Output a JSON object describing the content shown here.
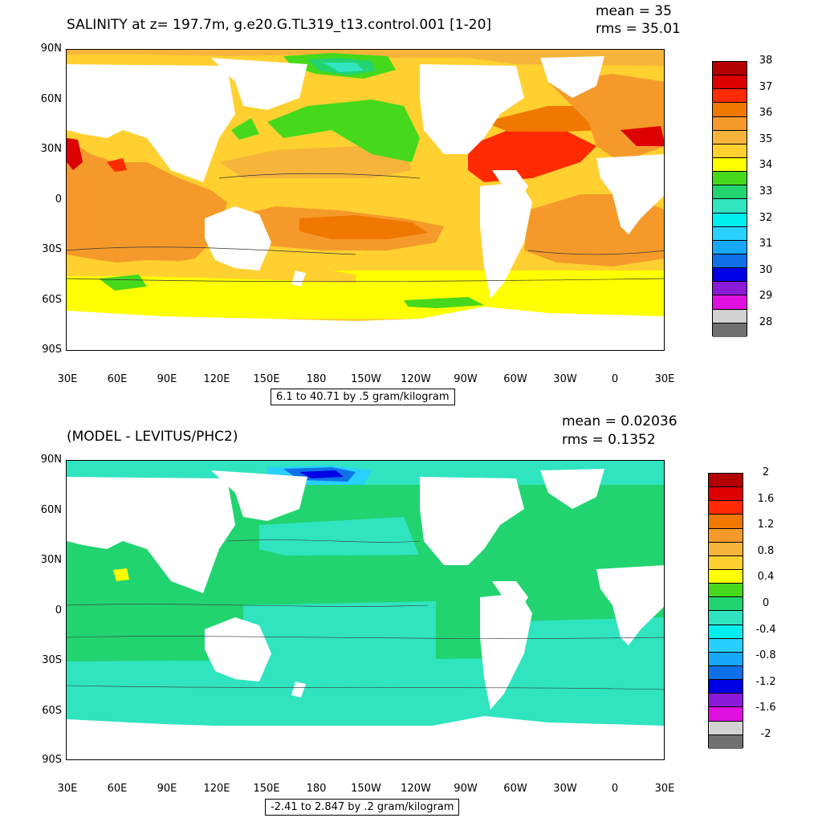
{
  "panels": [
    {
      "title": "SALINITY at z= 197.7m, g.e20.G.TL319_t13.control.001 [1-20]",
      "mean": "mean = 35",
      "rms": "rms = 35.01",
      "info": "6.1 to 40.71 by .5 gram/kilogram",
      "lat_labels": [
        "90N",
        "60N",
        "30N",
        "0",
        "30S",
        "60S",
        "90S"
      ],
      "lon_labels": [
        "30E",
        "60E",
        "90E",
        "120E",
        "150E",
        "180",
        "150W",
        "120W",
        "90W",
        "60W",
        "30W",
        "0",
        "30E"
      ],
      "colorbar_labels": [
        "38",
        "37",
        "36",
        "35",
        "34",
        "33",
        "32",
        "31",
        "30",
        "29",
        "28"
      ],
      "colorbar_colors": [
        "#b30000",
        "#dd0000",
        "#ff2a00",
        "#f07800",
        "#f59a2a",
        "#f6b53a",
        "#ffd030",
        "#ffff00",
        "#46d81a",
        "#22d470",
        "#30e4c0",
        "#00f0f0",
        "#28d0ff",
        "#18a8f8",
        "#1070e8",
        "#0000e6",
        "#8a1ad8",
        "#e010e0",
        "#d2d2d2",
        "#707070"
      ]
    },
    {
      "title": "(MODEL - LEVITUS/PHC2)",
      "mean": "mean = 0.02036",
      "rms": "rms = 0.1352",
      "info": "-2.41 to 2.847 by .2 gram/kilogram",
      "lat_labels": [
        "90N",
        "60N",
        "30N",
        "0",
        "30S",
        "60S",
        "90S"
      ],
      "lon_labels": [
        "30E",
        "60E",
        "90E",
        "120E",
        "150E",
        "180",
        "150W",
        "120W",
        "90W",
        "60W",
        "30W",
        "0",
        "30E"
      ],
      "colorbar_labels": [
        "2",
        "1.6",
        "1.2",
        "0.8",
        "0.4",
        "0",
        "-0.4",
        "-0.8",
        "-1.2",
        "-1.6",
        "-2"
      ],
      "colorbar_colors": [
        "#b30000",
        "#dd0000",
        "#ff2a00",
        "#f07800",
        "#f59a2a",
        "#f6b53a",
        "#ffd030",
        "#ffff00",
        "#46d81a",
        "#22d470",
        "#30e4c0",
        "#00f0f0",
        "#28d0ff",
        "#18a8f8",
        "#1070e8",
        "#0000e6",
        "#8a1ad8",
        "#e010e0",
        "#d2d2d2",
        "#707070"
      ]
    }
  ]
}
